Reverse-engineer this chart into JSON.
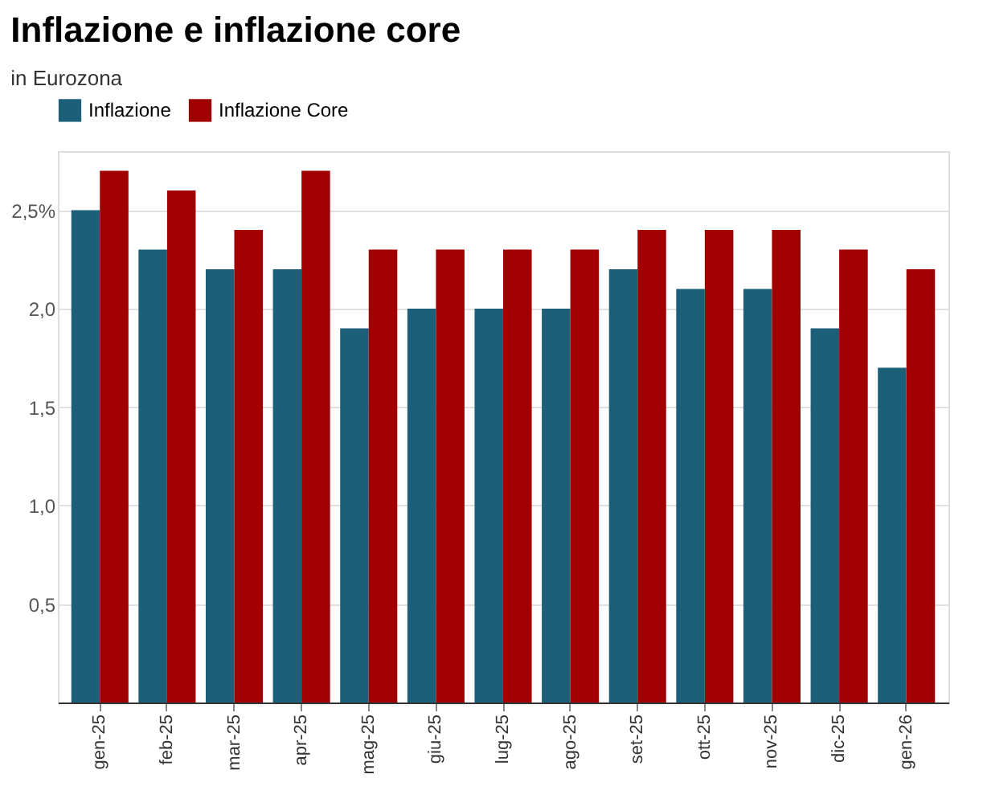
{
  "chart_data": {
    "type": "bar",
    "title": "Inflazione e inflazione core",
    "subtitle": "in Eurozona",
    "categories": [
      "gen-25",
      "feb-25",
      "mar-25",
      "apr-25",
      "mag-25",
      "giu-25",
      "lug-25",
      "ago-25",
      "set-25",
      "ott-25",
      "nov-25",
      "dic-25",
      "gen-26"
    ],
    "series": [
      {
        "name": "Inflazione",
        "color": "#1b6078",
        "values": [
          2.5,
          2.3,
          2.2,
          2.2,
          1.9,
          2.0,
          2.0,
          2.0,
          2.2,
          2.1,
          2.1,
          1.9,
          1.7
        ]
      },
      {
        "name": "Inflazione Core",
        "color": "#a00000",
        "values": [
          2.7,
          2.6,
          2.4,
          2.7,
          2.3,
          2.3,
          2.3,
          2.3,
          2.4,
          2.4,
          2.4,
          2.3,
          2.2
        ]
      }
    ],
    "ylim": [
      0,
      2.8
    ],
    "yticks": [
      {
        "value": 0,
        "label": null
      },
      {
        "value": 0.5,
        "label": "0,5"
      },
      {
        "value": 1,
        "label": "1,0"
      },
      {
        "value": 1.5,
        "label": "1,5"
      },
      {
        "value": 2,
        "label": "2,0"
      },
      {
        "value": 2.5,
        "label": "2,5%"
      }
    ],
    "grid": "y",
    "legend": "top left"
  }
}
